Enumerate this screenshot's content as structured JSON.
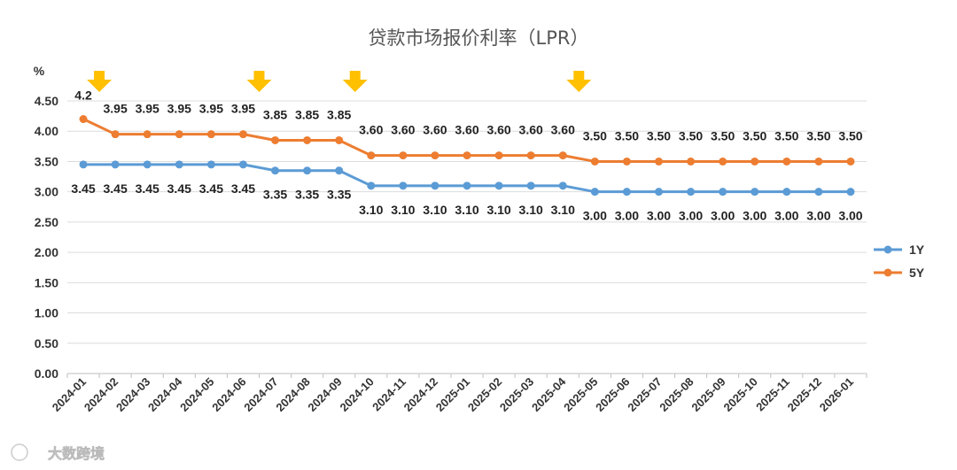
{
  "watermark": "大数跨境",
  "chart_data": {
    "type": "line",
    "title": "贷款市场报价利率（LPR）",
    "ylabel": "%",
    "xlabel": "",
    "ylim": [
      0,
      4.5
    ],
    "yticks": [
      "0.00",
      "0.50",
      "1.00",
      "1.50",
      "2.00",
      "2.50",
      "3.00",
      "3.50",
      "4.00",
      "4.50"
    ],
    "grid": true,
    "legend_position": "right",
    "categories": [
      "2024-01",
      "2024-02",
      "2024-03",
      "2024-04",
      "2024-05",
      "2024-06",
      "2024-07",
      "2024-08",
      "2024-09",
      "2024-10",
      "2024-11",
      "2024-12",
      "2025-01",
      "2025-02",
      "2025-03",
      "2025-04",
      "2025-05",
      "2025-06",
      "2025-07",
      "2025-08",
      "2025-09",
      "2025-10",
      "2025-11",
      "2025-12",
      "2026-01"
    ],
    "series": [
      {
        "name": "1Y",
        "color": "#5b9bd5",
        "values": [
          3.45,
          3.45,
          3.45,
          3.45,
          3.45,
          3.45,
          3.35,
          3.35,
          3.35,
          3.1,
          3.1,
          3.1,
          3.1,
          3.1,
          3.1,
          3.1,
          3.0,
          3.0,
          3.0,
          3.0,
          3.0,
          3.0,
          3.0,
          3.0,
          3.0
        ],
        "labels": [
          "3.45",
          "3.45",
          "3.45",
          "3.45",
          "3.45",
          "3.45",
          "3.35",
          "3.35",
          "3.35",
          "3.10",
          "3.10",
          "3.10",
          "3.10",
          "3.10",
          "3.10",
          "3.10",
          "3.00",
          "3.00",
          "3.00",
          "3.00",
          "3.00",
          "3.00",
          "3.00",
          "3.00",
          "3.00"
        ]
      },
      {
        "name": "5Y",
        "color": "#ed7d31",
        "values": [
          4.2,
          3.95,
          3.95,
          3.95,
          3.95,
          3.95,
          3.85,
          3.85,
          3.85,
          3.6,
          3.6,
          3.6,
          3.6,
          3.6,
          3.6,
          3.6,
          3.5,
          3.5,
          3.5,
          3.5,
          3.5,
          3.5,
          3.5,
          3.5,
          3.5
        ],
        "labels": [
          "4.2",
          "3.95",
          "3.95",
          "3.95",
          "3.95",
          "3.95",
          "3.85",
          "3.85",
          "3.85",
          "3.60",
          "3.60",
          "3.60",
          "3.60",
          "3.60",
          "3.60",
          "3.60",
          "3.50",
          "3.50",
          "3.50",
          "3.50",
          "3.50",
          "3.50",
          "3.50",
          "3.50",
          "3.50"
        ]
      }
    ],
    "rate_cut_markers": [
      "2024-02",
      "2024-07",
      "2024-10",
      "2025-05"
    ],
    "marker_color": "#ffc000"
  }
}
